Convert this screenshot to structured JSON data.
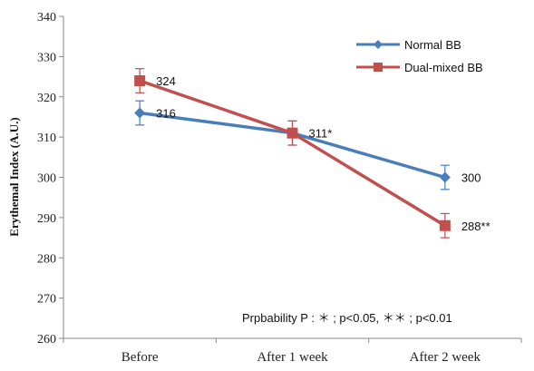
{
  "chart_data": {
    "type": "line",
    "categories": [
      "Before",
      "After 1 week",
      "After 2 week"
    ],
    "ylabel": "Erythemal Index (A.U.)",
    "ylim": [
      260,
      340
    ],
    "yticks": [
      260,
      270,
      280,
      290,
      300,
      310,
      320,
      330,
      340
    ],
    "grid": false,
    "legend_position": "top-right",
    "series": [
      {
        "name": "Normal BB",
        "color": "#4a7ebb",
        "marker": "diamond",
        "values": [
          316,
          311,
          300
        ],
        "error": [
          3,
          3,
          3
        ],
        "data_labels": [
          "316",
          "",
          "300"
        ]
      },
      {
        "name": "Dual-mixed BB",
        "color": "#c0504d",
        "marker": "square",
        "values": [
          324,
          311,
          288
        ],
        "error": [
          3,
          3,
          3
        ],
        "data_labels": [
          "324",
          "311*",
          "288**"
        ]
      }
    ],
    "annotation": "Prpbability P : ＊ ; p<0.05, ＊＊ ; p<0.01"
  }
}
